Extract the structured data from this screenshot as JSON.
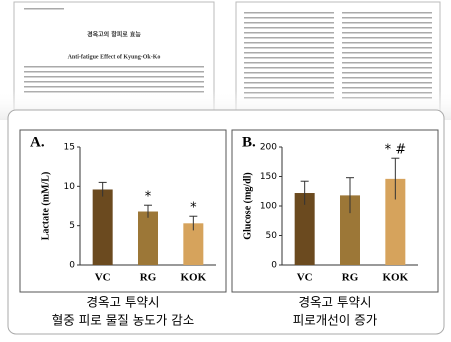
{
  "paper": {
    "korean_title": "경옥고의 항피로 효능",
    "title": "Anti-fatigue Effect of Kyung-Ok-Ko"
  },
  "chart_data": [
    {
      "type": "bar",
      "title": "A.",
      "y_label": "Lactate (mM/L)",
      "categories": [
        "VC",
        "RG",
        "KOK"
      ],
      "values": [
        9.6,
        6.8,
        5.3
      ],
      "errors": [
        0.9,
        0.8,
        0.9
      ],
      "colors": [
        "#6b4a1f",
        "#9c7737",
        "#d6a35c"
      ],
      "ylim": [
        0,
        15
      ],
      "yticks": [
        0,
        5,
        10,
        15
      ],
      "annotations": [
        {
          "category": "RG",
          "text": "*"
        },
        {
          "category": "KOK",
          "text": "*"
        }
      ],
      "caption": [
        "경옥고 투약시",
        "혈중 피로 물질 농도가 감소"
      ]
    },
    {
      "type": "bar",
      "title": "B.",
      "y_label": "Glucose (mg/dl)",
      "categories": [
        "VC",
        "RG",
        "KOK"
      ],
      "values": [
        122,
        118,
        146
      ],
      "errors": [
        20,
        30,
        35
      ],
      "colors": [
        "#6b4a1f",
        "#9c7737",
        "#d6a35c"
      ],
      "ylim": [
        0,
        200
      ],
      "yticks": [
        0,
        50,
        100,
        150,
        200
      ],
      "annotations": [
        {
          "category": "KOK",
          "text": "* #"
        }
      ],
      "caption": [
        "경옥고 투약시",
        "피로개선이 증가"
      ]
    }
  ]
}
